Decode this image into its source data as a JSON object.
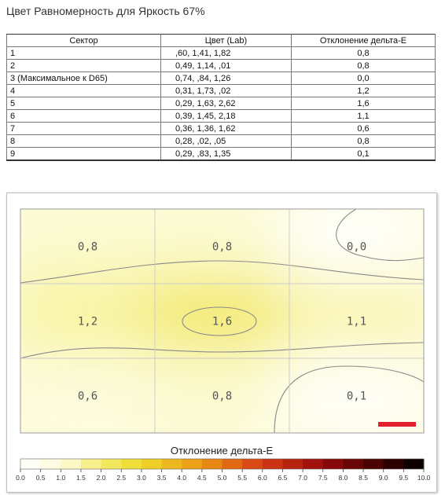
{
  "title": "Цвет Равномерность для Яркость 67%",
  "table": {
    "headers": [
      "Сектор",
      "Цвет (Lab)",
      "Отклонение дельта-E"
    ],
    "rows": [
      {
        "sector": "1",
        "lab": ",60,   1,41,   1,82",
        "de": "0,8"
      },
      {
        "sector": "2",
        "lab": "0,49,   1,14,   ,01",
        "de": "0,8"
      },
      {
        "sector": "3 (Максимальное к D65)",
        "lab": "0,74,   ,84,   1,26",
        "de": "0,0"
      },
      {
        "sector": "4",
        "lab": "0,31,   1,73,   ,02",
        "de": "1,2"
      },
      {
        "sector": "5",
        "lab": "0,29,   1,63,   2,62",
        "de": "1,6"
      },
      {
        "sector": "6",
        "lab": "0,39,   1,45,   2,18",
        "de": "1,1"
      },
      {
        "sector": "7",
        "lab": "0,36,   1,36,   1,62",
        "de": "0,6"
      },
      {
        "sector": "8",
        "lab": "0,28,   ,02,   ,05",
        "de": "0,8"
      },
      {
        "sector": "9",
        "lab": "0,29,   ,83,   1,35",
        "de": "0,1"
      }
    ]
  },
  "chart_data": {
    "type": "heatmap",
    "grid": {
      "rows": 3,
      "cols": 3
    },
    "cells": [
      {
        "label": "0,8",
        "value": 0.8
      },
      {
        "label": "0,8",
        "value": 0.8
      },
      {
        "label": "0,0",
        "value": 0.0
      },
      {
        "label": "1,2",
        "value": 1.2
      },
      {
        "label": "1,6",
        "value": 1.6
      },
      {
        "label": "1,1",
        "value": 1.1
      },
      {
        "label": "0,6",
        "value": 0.6
      },
      {
        "label": "0,8",
        "value": 0.8
      },
      {
        "label": "0,1",
        "value": 0.1
      }
    ],
    "colorbar": {
      "title": "Отклонение дельта-E",
      "range": [
        0,
        10
      ],
      "ticks": [
        "0.0",
        "0.5",
        "1.0",
        "1.5",
        "2.0",
        "2.5",
        "3.0",
        "3.5",
        "4.0",
        "4.5",
        "5.0",
        "5.5",
        "6.0",
        "6.5",
        "7.0",
        "7.5",
        "8.0",
        "8.5",
        "9.0",
        "9.5",
        "10.0"
      ]
    },
    "colors": {
      "low": "#ffffff",
      "mid": "#f0e040",
      "high": "#000000",
      "marker": "#e0202a",
      "contour": "#8a8a8a",
      "grid": "#cccccc"
    }
  }
}
